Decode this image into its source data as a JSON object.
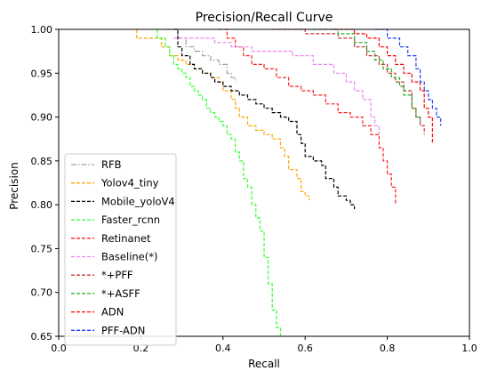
{
  "chart_data": {
    "type": "line",
    "title": "Precision/Recall Curve",
    "xlabel": "Recall",
    "ylabel": "Precision",
    "xlim": [
      0.0,
      1.0
    ],
    "ylim": [
      0.65,
      1.0
    ],
    "x_ticks": [
      "0.0",
      "0.2",
      "0.4",
      "0.6",
      "0.8",
      "1.0"
    ],
    "y_ticks": [
      "0.65",
      "0.70",
      "0.75",
      "0.80",
      "0.85",
      "0.90",
      "0.95",
      "1.00"
    ],
    "legend_position": "lower-left",
    "grid": false,
    "series": [
      {
        "name": "RFB",
        "color": "#a0a0a0",
        "dash": "dashdot",
        "points": [
          [
            0.26,
            1.0
          ],
          [
            0.29,
            0.99
          ],
          [
            0.31,
            0.98
          ],
          [
            0.33,
            0.975
          ],
          [
            0.35,
            0.97
          ],
          [
            0.37,
            0.965
          ],
          [
            0.39,
            0.96
          ],
          [
            0.41,
            0.95
          ],
          [
            0.42,
            0.945
          ],
          [
            0.43,
            0.94
          ]
        ]
      },
      {
        "name": "Yolov4_tiny",
        "color": "#ffa500",
        "dash": "dashed",
        "points": [
          [
            0.19,
            1.0
          ],
          [
            0.19,
            0.99
          ],
          [
            0.23,
            0.99
          ],
          [
            0.25,
            0.98
          ],
          [
            0.27,
            0.97
          ],
          [
            0.29,
            0.965
          ],
          [
            0.31,
            0.96
          ],
          [
            0.33,
            0.955
          ],
          [
            0.35,
            0.95
          ],
          [
            0.37,
            0.945
          ],
          [
            0.39,
            0.94
          ],
          [
            0.4,
            0.93
          ],
          [
            0.42,
            0.92
          ],
          [
            0.43,
            0.91
          ],
          [
            0.44,
            0.9
          ],
          [
            0.46,
            0.89
          ],
          [
            0.48,
            0.885
          ],
          [
            0.5,
            0.88
          ],
          [
            0.52,
            0.875
          ],
          [
            0.54,
            0.865
          ],
          [
            0.55,
            0.855
          ],
          [
            0.56,
            0.84
          ],
          [
            0.58,
            0.83
          ],
          [
            0.59,
            0.815
          ],
          [
            0.6,
            0.81
          ],
          [
            0.61,
            0.805
          ]
        ]
      },
      {
        "name": "Mobile_yoloV4",
        "color": "#000000",
        "dash": "dashed",
        "points": [
          [
            0.28,
            1.0
          ],
          [
            0.29,
            0.98
          ],
          [
            0.3,
            0.97
          ],
          [
            0.32,
            0.96
          ],
          [
            0.33,
            0.955
          ],
          [
            0.35,
            0.95
          ],
          [
            0.37,
            0.945
          ],
          [
            0.38,
            0.94
          ],
          [
            0.4,
            0.935
          ],
          [
            0.42,
            0.93
          ],
          [
            0.44,
            0.925
          ],
          [
            0.46,
            0.92
          ],
          [
            0.48,
            0.915
          ],
          [
            0.5,
            0.91
          ],
          [
            0.52,
            0.905
          ],
          [
            0.54,
            0.9
          ],
          [
            0.56,
            0.895
          ],
          [
            0.58,
            0.88
          ],
          [
            0.59,
            0.87
          ],
          [
            0.6,
            0.855
          ],
          [
            0.62,
            0.85
          ],
          [
            0.64,
            0.845
          ],
          [
            0.65,
            0.83
          ],
          [
            0.67,
            0.82
          ],
          [
            0.68,
            0.81
          ],
          [
            0.7,
            0.805
          ],
          [
            0.71,
            0.8
          ],
          [
            0.72,
            0.795
          ]
        ]
      },
      {
        "name": "Faster_rcnn",
        "color": "#33ff33",
        "dash": "dashed",
        "points": [
          [
            0.24,
            1.0
          ],
          [
            0.24,
            0.99
          ],
          [
            0.26,
            0.98
          ],
          [
            0.27,
            0.97
          ],
          [
            0.28,
            0.96
          ],
          [
            0.29,
            0.955
          ],
          [
            0.3,
            0.95
          ],
          [
            0.31,
            0.945
          ],
          [
            0.32,
            0.935
          ],
          [
            0.33,
            0.93
          ],
          [
            0.34,
            0.925
          ],
          [
            0.35,
            0.92
          ],
          [
            0.36,
            0.91
          ],
          [
            0.37,
            0.905
          ],
          [
            0.38,
            0.9
          ],
          [
            0.39,
            0.895
          ],
          [
            0.4,
            0.89
          ],
          [
            0.41,
            0.88
          ],
          [
            0.42,
            0.875
          ],
          [
            0.43,
            0.86
          ],
          [
            0.44,
            0.85
          ],
          [
            0.45,
            0.83
          ],
          [
            0.46,
            0.82
          ],
          [
            0.47,
            0.8
          ],
          [
            0.48,
            0.785
          ],
          [
            0.49,
            0.77
          ],
          [
            0.5,
            0.74
          ],
          [
            0.51,
            0.71
          ],
          [
            0.52,
            0.68
          ],
          [
            0.53,
            0.66
          ],
          [
            0.54,
            0.65
          ]
        ]
      },
      {
        "name": "Retinanet",
        "color": "#ff2020",
        "dash": "dashed",
        "points": [
          [
            0.39,
            1.0
          ],
          [
            0.41,
            0.99
          ],
          [
            0.43,
            0.98
          ],
          [
            0.45,
            0.97
          ],
          [
            0.47,
            0.96
          ],
          [
            0.5,
            0.955
          ],
          [
            0.53,
            0.945
          ],
          [
            0.56,
            0.935
          ],
          [
            0.59,
            0.93
          ],
          [
            0.62,
            0.925
          ],
          [
            0.65,
            0.915
          ],
          [
            0.68,
            0.905
          ],
          [
            0.71,
            0.9
          ],
          [
            0.74,
            0.89
          ],
          [
            0.76,
            0.88
          ],
          [
            0.78,
            0.865
          ],
          [
            0.79,
            0.85
          ],
          [
            0.8,
            0.835
          ],
          [
            0.81,
            0.82
          ],
          [
            0.82,
            0.81
          ],
          [
            0.82,
            0.8
          ]
        ]
      },
      {
        "name": "Baseline(*)",
        "color": "#ee82ee",
        "dash": "dashed",
        "points": [
          [
            0.28,
            0.99
          ],
          [
            0.33,
            0.99
          ],
          [
            0.38,
            0.985
          ],
          [
            0.42,
            0.98
          ],
          [
            0.47,
            0.975
          ],
          [
            0.52,
            0.975
          ],
          [
            0.57,
            0.97
          ],
          [
            0.62,
            0.96
          ],
          [
            0.67,
            0.95
          ],
          [
            0.7,
            0.94
          ],
          [
            0.72,
            0.93
          ],
          [
            0.74,
            0.92
          ],
          [
            0.76,
            0.9
          ],
          [
            0.77,
            0.89
          ],
          [
            0.78,
            0.88
          ]
        ]
      },
      {
        "name": "*+PFF",
        "color": "#cc3333",
        "dash": "dashed",
        "points": [
          [
            0.52,
            1.0
          ],
          [
            0.6,
            0.995
          ],
          [
            0.68,
            0.99
          ],
          [
            0.72,
            0.98
          ],
          [
            0.75,
            0.97
          ],
          [
            0.78,
            0.96
          ],
          [
            0.8,
            0.95
          ],
          [
            0.82,
            0.94
          ],
          [
            0.84,
            0.93
          ],
          [
            0.86,
            0.91
          ],
          [
            0.87,
            0.9
          ],
          [
            0.88,
            0.89
          ],
          [
            0.89,
            0.88
          ]
        ]
      },
      {
        "name": "*+ASFF",
        "color": "#22aa22",
        "dash": "dashed",
        "points": [
          [
            0.62,
            1.0
          ],
          [
            0.68,
            0.995
          ],
          [
            0.72,
            0.985
          ],
          [
            0.75,
            0.975
          ],
          [
            0.77,
            0.965
          ],
          [
            0.79,
            0.955
          ],
          [
            0.81,
            0.945
          ],
          [
            0.83,
            0.935
          ],
          [
            0.84,
            0.925
          ],
          [
            0.86,
            0.91
          ],
          [
            0.87,
            0.9
          ],
          [
            0.88,
            0.895
          ]
        ]
      },
      {
        "name": "ADN",
        "color": "#ff0000",
        "dash": "dashed",
        "points": [
          [
            0.67,
            1.0
          ],
          [
            0.72,
            0.995
          ],
          [
            0.75,
            0.99
          ],
          [
            0.78,
            0.98
          ],
          [
            0.8,
            0.97
          ],
          [
            0.82,
            0.96
          ],
          [
            0.84,
            0.95
          ],
          [
            0.86,
            0.94
          ],
          [
            0.88,
            0.93
          ],
          [
            0.89,
            0.91
          ],
          [
            0.9,
            0.9
          ],
          [
            0.91,
            0.89
          ],
          [
            0.91,
            0.87
          ]
        ]
      },
      {
        "name": "PFF-ADN",
        "color": "#1f3fff",
        "dash": "dashed",
        "points": [
          [
            0.77,
            1.0
          ],
          [
            0.8,
            0.99
          ],
          [
            0.83,
            0.98
          ],
          [
            0.85,
            0.97
          ],
          [
            0.87,
            0.955
          ],
          [
            0.88,
            0.94
          ],
          [
            0.89,
            0.93
          ],
          [
            0.9,
            0.92
          ],
          [
            0.91,
            0.91
          ],
          [
            0.92,
            0.9
          ],
          [
            0.93,
            0.89
          ]
        ]
      }
    ]
  }
}
